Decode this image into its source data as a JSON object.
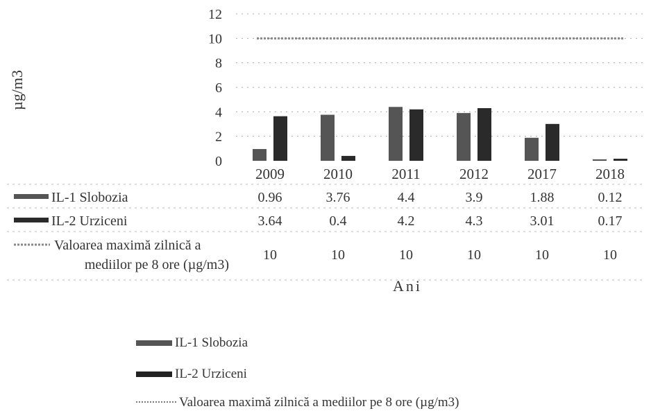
{
  "chart_data": {
    "type": "bar",
    "categories": [
      "2009",
      "2010",
      "2011",
      "2012",
      "2017",
      "2018"
    ],
    "ylabel": "µg/m3",
    "xlabel": "Ani",
    "ylim": [
      0,
      12
    ],
    "yticks": [
      "0",
      "2",
      "4",
      "6",
      "8",
      "10",
      "12"
    ],
    "grid": true,
    "series": [
      {
        "name": "IL-1 Slobozia",
        "type": "bar",
        "color": "#555555",
        "values": [
          0.96,
          3.76,
          4.4,
          3.9,
          1.88,
          0.12
        ],
        "display": [
          "0.96",
          "3.76",
          "4.4",
          "3.9",
          "1.88",
          "0.12"
        ]
      },
      {
        "name": "IL-2 Urziceni",
        "type": "bar",
        "color": "#2a2a2a",
        "values": [
          3.64,
          0.4,
          4.2,
          4.3,
          3.01,
          0.17
        ],
        "display": [
          "3.64",
          "0.4",
          "4.2",
          "4.3",
          "3.01",
          "0.17"
        ]
      },
      {
        "name_line1": "Valoarea maximă zilnică a",
        "name_line2": "mediilor pe 8 ore (µg/m3)",
        "type": "line",
        "color": "#888888",
        "values": [
          10,
          10,
          10,
          10,
          10,
          10
        ],
        "display": [
          "10",
          "10",
          "10",
          "10",
          "10",
          "10"
        ]
      }
    ],
    "legend": {
      "placement": "bottom",
      "items": [
        "IL-1 Slobozia",
        "IL-2 Urziceni",
        "Valoarea maximă zilnică a mediilor pe 8 ore (µg/m3)"
      ]
    }
  }
}
